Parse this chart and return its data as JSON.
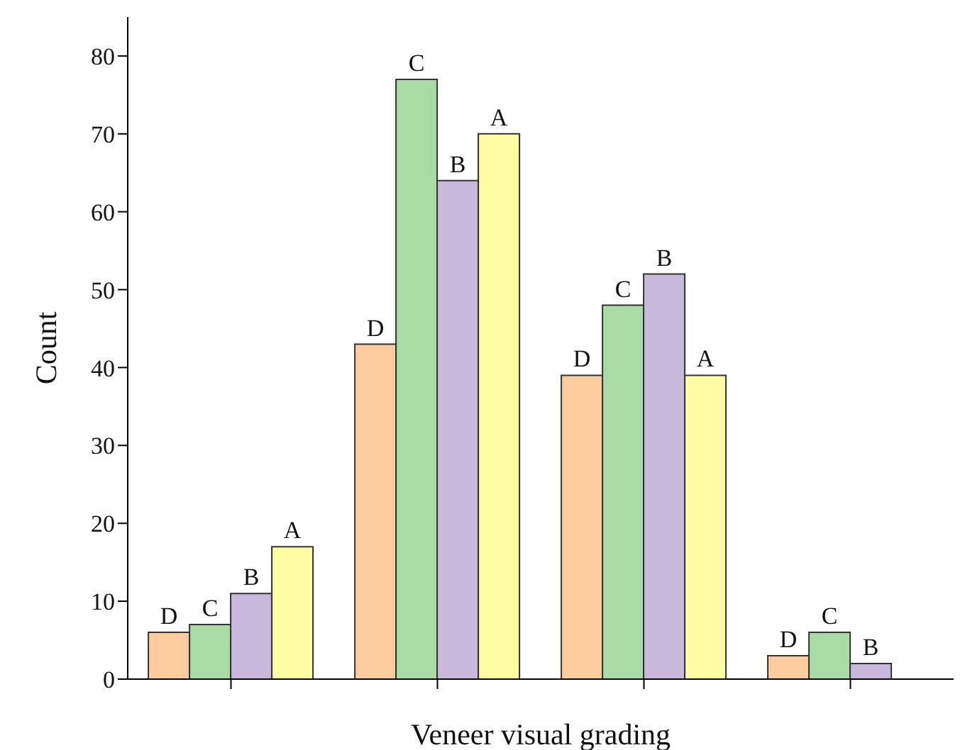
{
  "chart_data": {
    "type": "bar",
    "xlabel": "Veneer visual grading",
    "ylabel": "Count",
    "categories": [
      null,
      null,
      null,
      null
    ],
    "series": [
      {
        "name": "D",
        "color": "#fccc9e",
        "values": [
          6,
          43,
          39,
          3
        ]
      },
      {
        "name": "C",
        "color": "#a8dca4",
        "values": [
          7,
          77,
          48,
          6
        ]
      },
      {
        "name": "B",
        "color": "#c8b8dc",
        "values": [
          11,
          64,
          52,
          2
        ]
      },
      {
        "name": "A",
        "color": "#fefca4",
        "values": [
          17,
          70,
          39,
          null
        ]
      }
    ],
    "ylim": [
      0,
      85
    ],
    "yticks": [
      0,
      10,
      20,
      30,
      40,
      50,
      60,
      70,
      80
    ],
    "grid": false,
    "legend": false
  }
}
